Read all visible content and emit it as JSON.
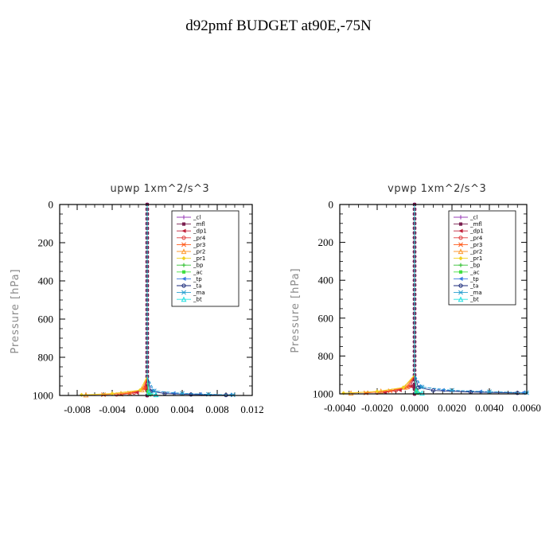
{
  "figure": {
    "title": "d92pmf  BUDGET at90E,-75N"
  },
  "chart_data": [
    {
      "type": "line",
      "title": "upwp   1xm^2/s^3",
      "xlabel": "",
      "ylabel": "Pressure [hPa]",
      "xlim": [
        -0.01,
        0.012
      ],
      "ylim": [
        1000,
        0
      ],
      "xticks": [
        -0.008,
        -0.004,
        0.0,
        0.004,
        0.008,
        0.012
      ],
      "xtick_labels": [
        "-0.008",
        "-0.004",
        "0.000",
        "0.004",
        "0.008",
        "0.012"
      ],
      "yticks": [
        0,
        200,
        400,
        600,
        800,
        1000
      ],
      "ytick_labels": [
        "0",
        "200",
        "400",
        "600",
        "800",
        "1000"
      ],
      "legend_position": "top-right",
      "series": [
        {
          "name": "_cl",
          "color": "#9a3fb8",
          "x": [
            0,
            0,
            0,
            0,
            0,
            0
          ],
          "y": [
            0,
            200,
            400,
            600,
            800,
            1000
          ]
        },
        {
          "name": "_mfl",
          "color": "#7a1f4f",
          "x": [
            0,
            0,
            0,
            0,
            0,
            0,
            0
          ],
          "y": [
            0,
            200,
            400,
            600,
            800,
            960,
            1000
          ]
        },
        {
          "name": "_dp1",
          "color": "#c0203a",
          "x": [
            0,
            0,
            0,
            -0.0002,
            -0.0012,
            -0.003
          ],
          "y": [
            0,
            600,
            900,
            960,
            985,
            995
          ]
        },
        {
          "name": "_pr4",
          "color": "#e03a3a",
          "x": [
            0,
            0,
            -0.0003,
            -0.0015,
            -0.0035
          ],
          "y": [
            0,
            900,
            960,
            985,
            995
          ]
        },
        {
          "name": "_pr3",
          "color": "#ff5a1a",
          "x": [
            0,
            0,
            -0.0004,
            -0.002,
            -0.005
          ],
          "y": [
            0,
            900,
            965,
            988,
            996
          ]
        },
        {
          "name": "_pr2",
          "color": "#ff9a30",
          "x": [
            0,
            0,
            -0.0006,
            -0.003,
            -0.007
          ],
          "y": [
            0,
            900,
            970,
            990,
            997
          ]
        },
        {
          "name": "_pr1",
          "color": "#f0d020",
          "x": [
            0,
            0,
            -0.0008,
            -0.004,
            -0.0075
          ],
          "y": [
            0,
            900,
            972,
            990,
            997
          ]
        },
        {
          "name": "_bp",
          "color": "#30c030",
          "x": [
            0,
            0,
            0.0002,
            0.0004
          ],
          "y": [
            0,
            900,
            980,
            995
          ]
        },
        {
          "name": "_ac",
          "color": "#40e040",
          "x": [
            0,
            0,
            0.0001,
            0.0002
          ],
          "y": [
            0,
            900,
            980,
            995
          ]
        },
        {
          "name": "_tp",
          "color": "#3a7ae0",
          "x": [
            0,
            0,
            0.0006,
            0.003,
            0.006,
            0.0095
          ],
          "y": [
            0,
            900,
            975,
            988,
            993,
            997
          ]
        },
        {
          "name": "_ta",
          "color": "#1a2a7a",
          "x": [
            0,
            0,
            0.0004,
            0.002,
            0.005,
            0.009
          ],
          "y": [
            0,
            900,
            978,
            990,
            995,
            998
          ]
        },
        {
          "name": "_ma",
          "color": "#2aa0d0",
          "x": [
            0,
            0,
            0.0008,
            0.004,
            0.007,
            0.0098
          ],
          "y": [
            0,
            900,
            976,
            989,
            994,
            997
          ]
        },
        {
          "name": "_bt",
          "color": "#20e0e0",
          "x": [
            0,
            0,
            0.0002,
            0.001
          ],
          "y": [
            0,
            900,
            985,
            996
          ]
        }
      ]
    },
    {
      "type": "line",
      "title": "vpwp   1xm^2/s^3",
      "xlabel": "",
      "ylabel": "Pressure [hPa]",
      "xlim": [
        -0.004,
        0.006
      ],
      "ylim": [
        1000,
        0
      ],
      "xticks": [
        -0.004,
        -0.002,
        0.0,
        0.002,
        0.004,
        0.006
      ],
      "xtick_labels": [
        "-0.0040",
        "-0.0020",
        "0.0000",
        "0.0020",
        "0.0040",
        "0.0060"
      ],
      "yticks": [
        0,
        200,
        400,
        600,
        800,
        1000
      ],
      "ytick_labels": [
        "0",
        "200",
        "400",
        "600",
        "800",
        "1000"
      ],
      "legend_position": "top-right",
      "series": [
        {
          "name": "_cl",
          "color": "#9a3fb8",
          "x": [
            0,
            0,
            0,
            0,
            0,
            0
          ],
          "y": [
            0,
            200,
            400,
            600,
            800,
            1000
          ]
        },
        {
          "name": "_mfl",
          "color": "#7a1f4f",
          "x": [
            0,
            0,
            0,
            0,
            0,
            0,
            0
          ],
          "y": [
            0,
            200,
            400,
            600,
            800,
            960,
            1000
          ]
        },
        {
          "name": "_dp1",
          "color": "#c0203a",
          "x": [
            0,
            0,
            -0.0002,
            -0.0008,
            -0.0016
          ],
          "y": [
            0,
            900,
            960,
            980,
            992
          ]
        },
        {
          "name": "_pr4",
          "color": "#e03a3a",
          "x": [
            0,
            0,
            -0.0003,
            -0.001,
            -0.002
          ],
          "y": [
            0,
            900,
            962,
            982,
            994
          ]
        },
        {
          "name": "_pr3",
          "color": "#ff5a1a",
          "x": [
            0,
            0,
            -0.0004,
            -0.0013,
            -0.0026
          ],
          "y": [
            0,
            900,
            964,
            984,
            995
          ]
        },
        {
          "name": "_pr2",
          "color": "#ff9a30",
          "x": [
            0,
            0,
            -0.0005,
            -0.0018,
            -0.0034
          ],
          "y": [
            0,
            900,
            965,
            986,
            996
          ]
        },
        {
          "name": "_pr1",
          "color": "#f0d020",
          "x": [
            0,
            0,
            -0.0006,
            -0.002,
            -0.0038
          ],
          "y": [
            0,
            900,
            966,
            987,
            996
          ]
        },
        {
          "name": "_bp",
          "color": "#30c030",
          "x": [
            0,
            0,
            0.0001,
            0.0002
          ],
          "y": [
            0,
            900,
            980,
            995
          ]
        },
        {
          "name": "_ac",
          "color": "#40e040",
          "x": [
            0,
            0,
            0.0001,
            0.0001
          ],
          "y": [
            0,
            900,
            980,
            995
          ]
        },
        {
          "name": "_tp",
          "color": "#3a7ae0",
          "x": [
            0,
            0,
            0.0003,
            0.0015,
            0.0035,
            0.0058
          ],
          "y": [
            0,
            900,
            962,
            980,
            988,
            993
          ]
        },
        {
          "name": "_ta",
          "color": "#1a2a7a",
          "x": [
            0,
            0,
            0.0002,
            0.001,
            0.003,
            0.0055
          ],
          "y": [
            0,
            900,
            966,
            982,
            990,
            995
          ]
        },
        {
          "name": "_ma",
          "color": "#2aa0d0",
          "x": [
            0,
            0,
            0.0004,
            0.002,
            0.004,
            0.006
          ],
          "y": [
            0,
            900,
            964,
            981,
            989,
            994
          ]
        },
        {
          "name": "_bt",
          "color": "#20e0e0",
          "x": [
            0,
            0,
            0.0001,
            0.0004
          ],
          "y": [
            0,
            900,
            985,
            996
          ]
        }
      ]
    }
  ]
}
